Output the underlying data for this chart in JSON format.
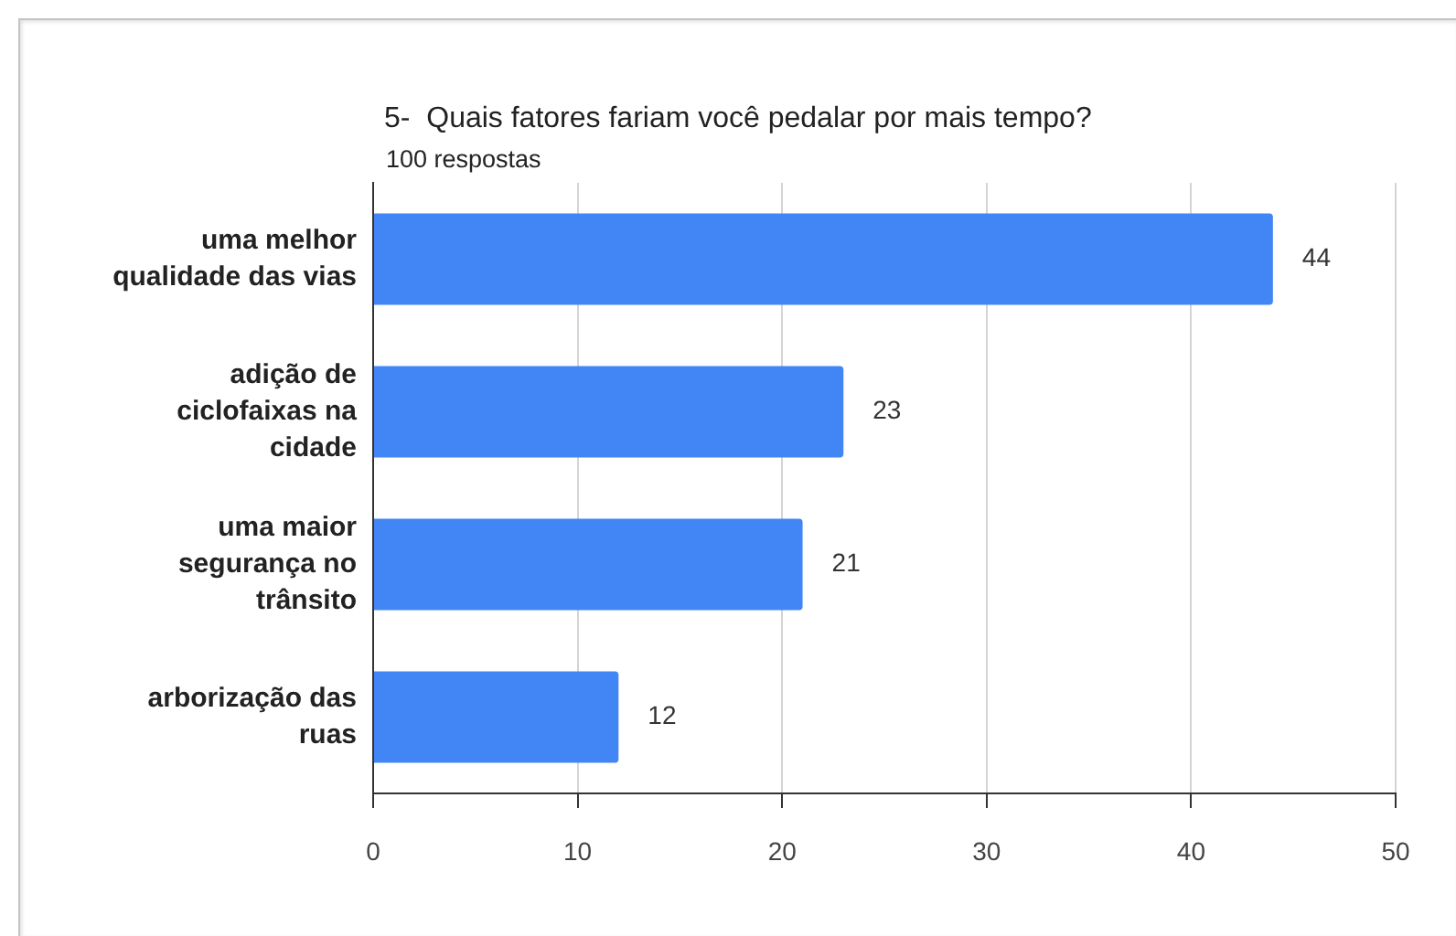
{
  "chart_data": {
    "type": "bar",
    "orientation": "horizontal",
    "title": "5-  Quais fatores fariam você pedalar por mais tempo?",
    "subtitle": "100 respostas",
    "categories": [
      "uma melhor qualidade das vias",
      "adição de ciclofaixas na cidade",
      "uma maior segurança no trânsito",
      "arborização das ruas"
    ],
    "values": [
      44,
      23,
      21,
      12
    ],
    "color": "#4285f4",
    "xlim": [
      0,
      50
    ],
    "xticks": [
      0,
      10,
      20,
      30,
      40,
      50
    ],
    "grid": "x",
    "data_labels": true
  }
}
